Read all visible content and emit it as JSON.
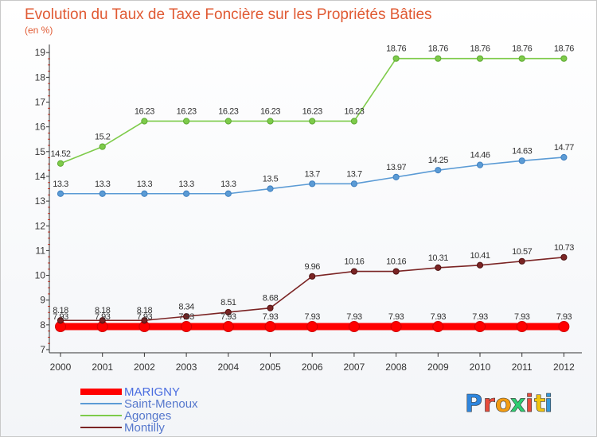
{
  "chart_data": {
    "type": "line",
    "title": "Evolution du Taux de Taxe Foncière sur les Propriétés Bâties",
    "subtitle": "(en %)",
    "x": [
      "2000",
      "2001",
      "2002",
      "2003",
      "2004",
      "2005",
      "2006",
      "2007",
      "2008",
      "2009",
      "2010",
      "2011",
      "2012"
    ],
    "yticks": [
      "7",
      "8",
      "9",
      "10",
      "11",
      "12",
      "13",
      "14",
      "15",
      "16",
      "17",
      "18",
      "19"
    ],
    "ylim": [
      7,
      19
    ],
    "grid": false,
    "series": [
      {
        "name": "MARIGNY",
        "color": "#ff0000",
        "labels": [
          "7.93",
          "7.93",
          "7.93",
          "7.93",
          "7.93",
          "7.93",
          "7.93",
          "7.93",
          "7.93",
          "7.93",
          "7.93",
          "7.93",
          "7.93"
        ],
        "values": [
          7.93,
          7.93,
          7.93,
          7.93,
          7.93,
          7.93,
          7.93,
          7.93,
          7.93,
          7.93,
          7.93,
          7.93,
          7.93
        ]
      },
      {
        "name": "Saint-Menoux",
        "color": "#5b9bd5",
        "labels": [
          "13.3",
          "13.3",
          "13.3",
          "13.3",
          "13.3",
          "13.5",
          "13.7",
          "13.7",
          "13.97",
          "14.25",
          "14.46",
          "14.63",
          "14.77"
        ],
        "values": [
          13.3,
          13.3,
          13.3,
          13.3,
          13.3,
          13.5,
          13.7,
          13.7,
          13.97,
          14.25,
          14.46,
          14.63,
          14.77
        ]
      },
      {
        "name": "Agonges",
        "color": "#7ecb4a",
        "labels": [
          "14.52",
          "15.2",
          "16.23",
          "16.23",
          "16.23",
          "16.23",
          "16.23",
          "16.23",
          "18.76",
          "18.76",
          "18.76",
          "18.76",
          "18.76"
        ],
        "values": [
          14.52,
          15.2,
          16.23,
          16.23,
          16.23,
          16.23,
          16.23,
          16.23,
          18.76,
          18.76,
          18.76,
          18.76,
          18.76
        ]
      },
      {
        "name": "Montilly",
        "color": "#7b2424",
        "labels": [
          "8.18",
          "8.18",
          "8.18",
          "8.34",
          "8.51",
          "8.68",
          "9.96",
          "10.16",
          "10.16",
          "10.31",
          "10.41",
          "10.57",
          "10.73"
        ],
        "values": [
          8.18,
          8.18,
          8.18,
          8.34,
          8.51,
          8.68,
          9.96,
          10.16,
          10.16,
          10.31,
          10.41,
          10.57,
          10.73
        ]
      }
    ],
    "legend": "bottom-left"
  },
  "logo": {
    "letters": [
      "P",
      "r",
      "o",
      "x",
      "i",
      "t",
      "i"
    ],
    "colors": [
      "#2e86de",
      "#e74c3c",
      "#f39c12",
      "#2ecc71",
      "#e74c3c",
      "#f1c40f",
      "#3498db"
    ]
  }
}
